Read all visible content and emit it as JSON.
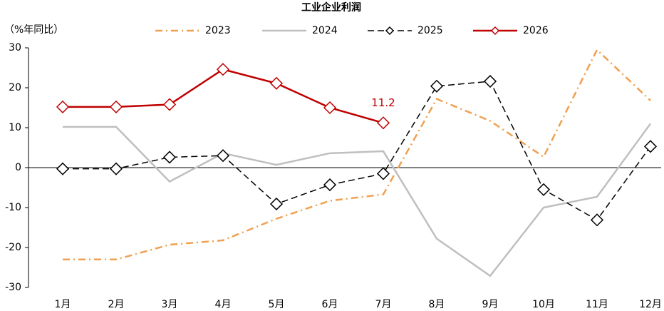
{
  "chart_data": {
    "type": "line",
    "title": "工业企业利润",
    "y_label": "（%年同比）",
    "categories": [
      "1月",
      "2月",
      "3月",
      "4月",
      "5月",
      "6月",
      "7月",
      "8月",
      "9月",
      "10月",
      "11月",
      "12月"
    ],
    "series": [
      {
        "name": "2023",
        "color": "#f0a050",
        "dash": "dashdot",
        "marker": "none",
        "width": 2.5,
        "values": [
          -23,
          -23,
          -19.3,
          -18.2,
          -12.8,
          -8.3,
          -6.7,
          17.2,
          11.7,
          2.7,
          29.5,
          16.8
        ]
      },
      {
        "name": "2024",
        "color": "#bfbfbf",
        "dash": "solid",
        "marker": "none",
        "width": 2.5,
        "values": [
          10.2,
          10.2,
          -3.5,
          3.6,
          0.7,
          3.6,
          4.1,
          -17.8,
          -27.1,
          -10.0,
          -7.3,
          11.0
        ]
      },
      {
        "name": "2025",
        "color": "#000000",
        "dash": "dash",
        "marker": "diamond",
        "width": 1.5,
        "values": [
          -0.3,
          -0.3,
          2.6,
          3.0,
          -9.1,
          -4.3,
          -1.5,
          20.4,
          21.6,
          -5.5,
          -13.1,
          5.3
        ]
      },
      {
        "name": "2026",
        "color": "#c00000",
        "dash": "solid",
        "marker": "diamond",
        "width": 2.5,
        "values": [
          15.2,
          15.2,
          15.8,
          24.6,
          21.1,
          15.0,
          11.2,
          null,
          null,
          null,
          null,
          null
        ]
      }
    ],
    "data_label_series": 3,
    "data_label_index": 6,
    "ylim": [
      -30,
      30
    ],
    "yticks": [
      -30,
      -20,
      -10,
      0,
      10,
      20,
      30
    ],
    "grid": false,
    "legend": "top"
  }
}
